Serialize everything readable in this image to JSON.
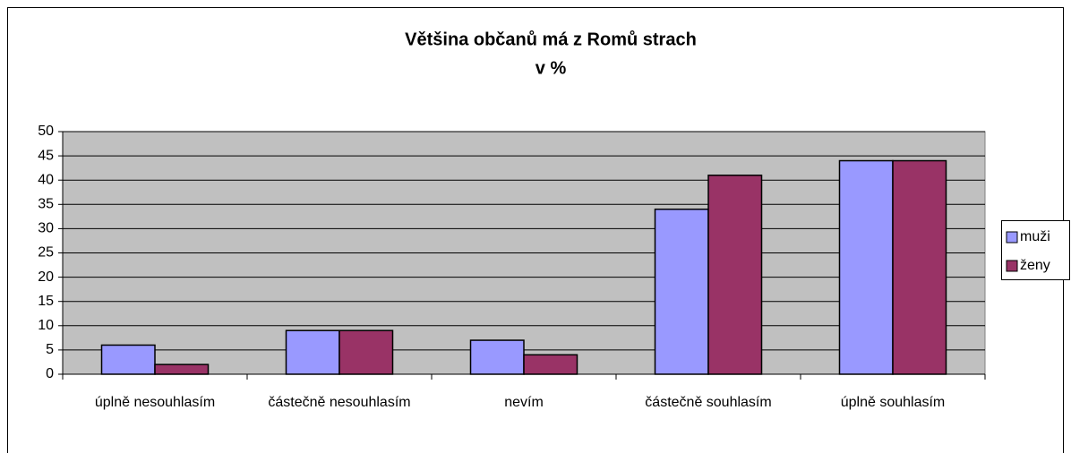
{
  "chart_data": {
    "type": "bar",
    "title": "Většina občanů má z Romů strach",
    "subtitle": "v %",
    "categories": [
      "úplně nesouhlasím",
      "částečně nesouhlasím",
      "nevím",
      "částečně souhlasím",
      "úplně souhlasím"
    ],
    "series": [
      {
        "name": "muži",
        "color": "#9999ff",
        "values": [
          6,
          9,
          7,
          34,
          44
        ]
      },
      {
        "name": "ženy",
        "color": "#993366",
        "values": [
          2,
          9,
          4,
          41,
          44
        ]
      }
    ],
    "ylim": [
      0,
      50
    ],
    "yticks": [
      0,
      5,
      10,
      15,
      20,
      25,
      30,
      35,
      40,
      45,
      50
    ],
    "grid": true,
    "legend": "right"
  }
}
